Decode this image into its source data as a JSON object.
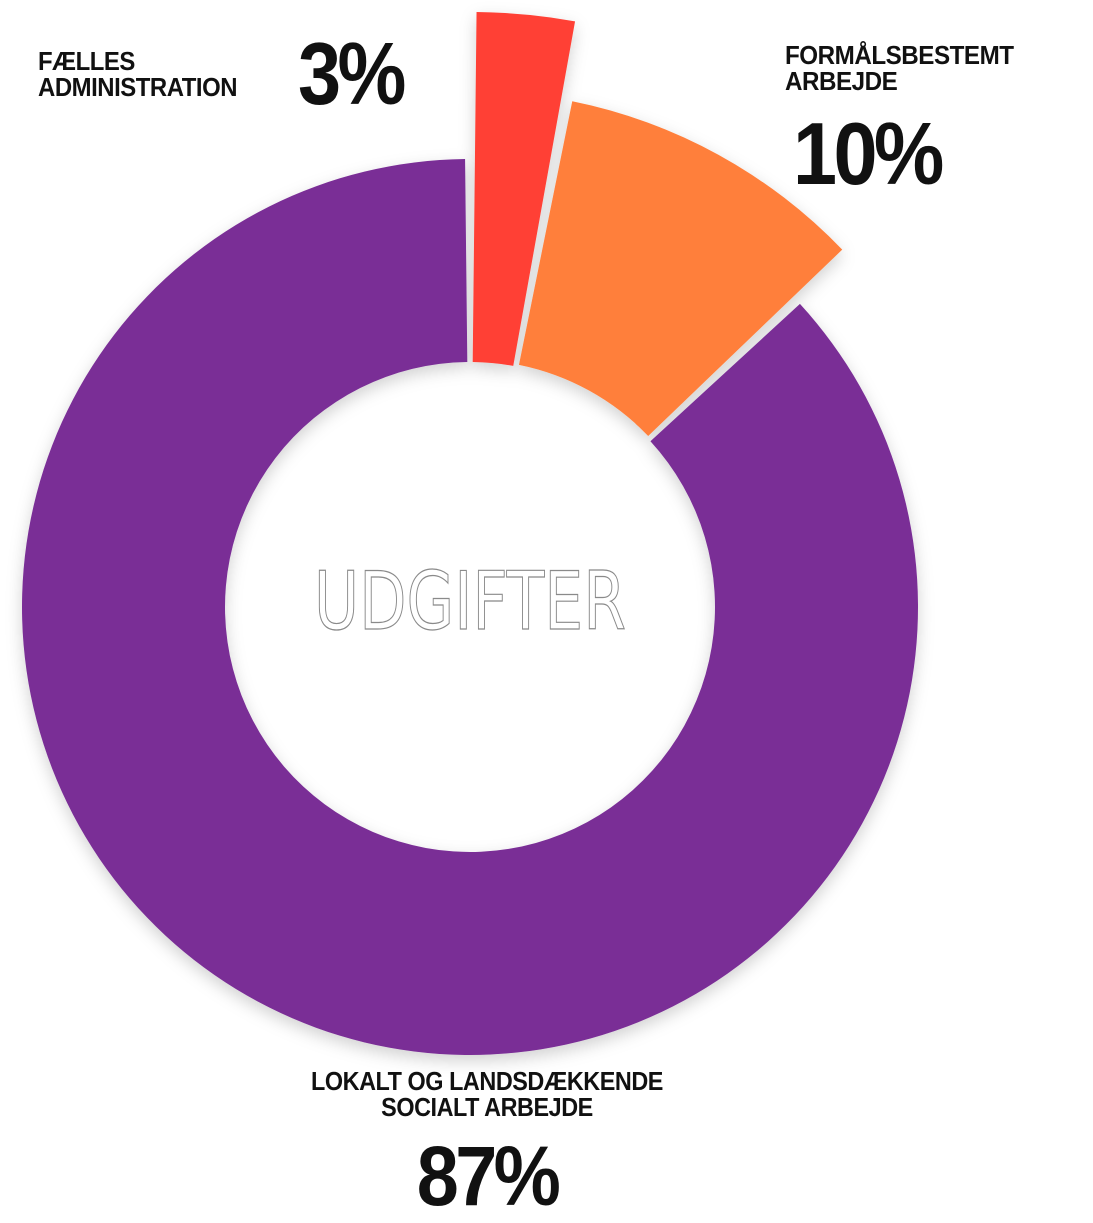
{
  "chart_data": {
    "type": "pie",
    "donut": true,
    "center_label": "UDGIFTER",
    "categories": [
      "FÆLLES ADMINISTRATION",
      "FORMÅLSBESTEMT ARBEJDE",
      "LOKALT OG LANDSDÆKKENDE SOCIALT ARBEJDE"
    ],
    "values": [
      3,
      10,
      87
    ],
    "value_labels": [
      "3%",
      "10%",
      "87%"
    ],
    "colors": [
      "#ff4136",
      "#ff7f3a",
      "#7a2d96"
    ]
  }
}
